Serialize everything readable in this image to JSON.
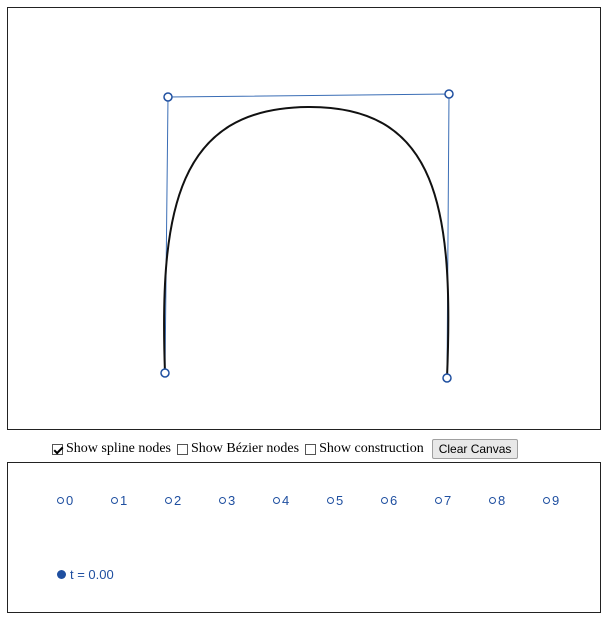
{
  "controls": {
    "show_spline_nodes": {
      "label": "Show spline nodes",
      "checked": true
    },
    "show_bezier_nodes": {
      "label": "Show Bézier nodes",
      "checked": false
    },
    "show_construction": {
      "label": "Show construction",
      "checked": false
    },
    "clear_label": "Clear Canvas"
  },
  "node_selector": [
    "0",
    "1",
    "2",
    "3",
    "4",
    "5",
    "6",
    "7",
    "8",
    "9"
  ],
  "t_display": "t = 0.00",
  "colors": {
    "accent": "#1f4fa0",
    "curve": "#000000"
  }
}
